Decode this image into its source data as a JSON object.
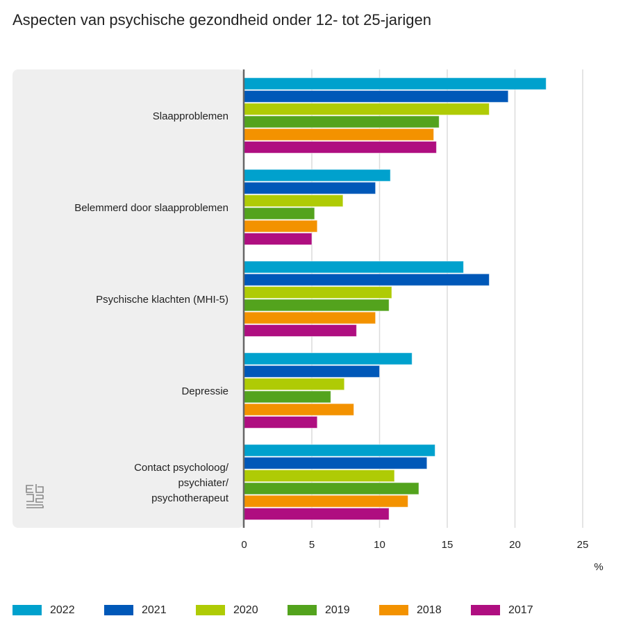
{
  "chart_data": {
    "type": "bar",
    "orientation": "horizontal",
    "title": "Aspecten van psychische gezondheid onder 12- tot 25-jarigen",
    "xlabel": "%",
    "xlim": [
      0,
      25
    ],
    "xticks": [
      0,
      5,
      10,
      15,
      20,
      25
    ],
    "grid": true,
    "legend_position": "bottom",
    "categories": [
      "Slaapproblemen",
      "Belemmerd door slaapproblemen",
      "Psychische klachten (MHI-5)",
      "Depressie",
      "Contact psycholoog/\npsychiater/\npsychotherapeut"
    ],
    "series": [
      {
        "name": "2022",
        "color": "#00a1cd",
        "values": [
          22.3,
          10.8,
          16.2,
          12.4,
          14.1
        ]
      },
      {
        "name": "2021",
        "color": "#0058b8",
        "values": [
          19.5,
          9.7,
          18.1,
          10.0,
          13.5
        ]
      },
      {
        "name": "2020",
        "color": "#afcb05",
        "values": [
          18.1,
          7.3,
          10.9,
          7.4,
          11.1
        ]
      },
      {
        "name": "2019",
        "color": "#53a31d",
        "values": [
          14.4,
          5.2,
          10.7,
          6.4,
          12.9
        ]
      },
      {
        "name": "2018",
        "color": "#f39200",
        "values": [
          14.0,
          5.4,
          9.7,
          8.1,
          12.1
        ]
      },
      {
        "name": "2017",
        "color": "#af0e80",
        "values": [
          14.2,
          5.0,
          8.3,
          5.4,
          10.7
        ]
      }
    ]
  }
}
